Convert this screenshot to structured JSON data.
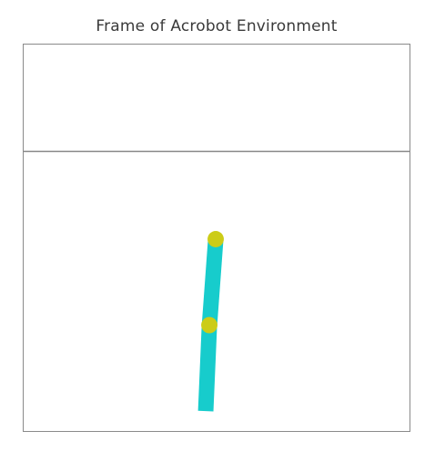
{
  "figure": {
    "title": "Frame of Acrobot Environment"
  },
  "scene": {
    "colors": {
      "background": "#ffffff",
      "border": "#8a8a8a",
      "target_line": "#888888",
      "links": "#17cccc",
      "joints": "#cccc17"
    }
  }
}
